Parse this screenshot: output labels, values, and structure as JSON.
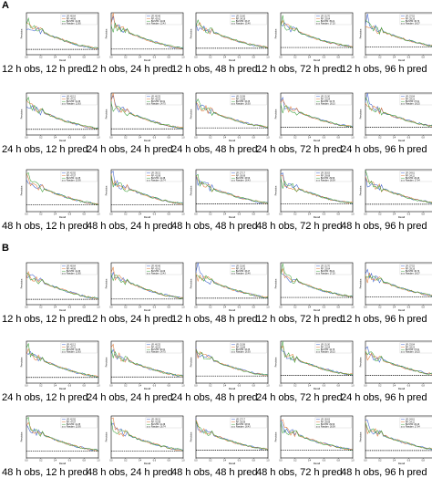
{
  "axis_labels": {
    "ylabel": "Precision",
    "xlabel": "Recall"
  },
  "x_ticks": [
    "0.0",
    "0.2",
    "0.4",
    "0.6",
    "0.8",
    "1.0"
  ],
  "series_colors": {
    "LR": "#3a5fcd",
    "RF": "#e07b39",
    "BiLSTM": "#3aa03a",
    "Random": "#000000"
  },
  "chart_data": [
    {
      "section": "A",
      "type": "line",
      "xlim": [
        0,
        1
      ],
      "ylim": [
        0,
        1
      ],
      "panels": [
        {
          "caption": "12 h obs, 12 h pred",
          "legend": [
            {
              "name": "LR: 40.64",
              "value": 0.4064
            },
            {
              "name": "RF: 44.96",
              "value": 0.4496
            },
            {
              "name": "BiLSTM: 41.30",
              "value": 0.413
            },
            {
              "name": "Random: 12.85",
              "value": 0.1285
            }
          ]
        },
        {
          "caption": "12 h obs, 24 h pred",
          "legend": [
            {
              "name": "LR: 40.46",
              "value": 0.4046
            },
            {
              "name": "RF: 42.61",
              "value": 0.4261
            },
            {
              "name": "BiLSTM: 41.00",
              "value": 0.41
            },
            {
              "name": "Random: 13.43",
              "value": 0.1343
            }
          ]
        },
        {
          "caption": "12 h obs, 48 h pred",
          "legend": [
            {
              "name": "LR: 31.60",
              "value": 0.316
            },
            {
              "name": "RF: 34.19",
              "value": 0.3419
            },
            {
              "name": "BiLSTM: 33.47",
              "value": 0.3347
            },
            {
              "name": "Random: 15.46",
              "value": 0.1546
            }
          ]
        },
        {
          "caption": "12 h obs, 72 h pred",
          "legend": [
            {
              "name": "LR: 31.70",
              "value": 0.317
            },
            {
              "name": "RF: 33.64",
              "value": 0.3364
            },
            {
              "name": "BiLSTM: 35.21",
              "value": 0.3521
            },
            {
              "name": "Random: 17.25",
              "value": 0.1725
            }
          ]
        },
        {
          "caption": "12 h obs, 96 h pred",
          "legend": [
            {
              "name": "LR: 27.52",
              "value": 0.2752
            },
            {
              "name": "RF: 29.16",
              "value": 0.2916
            },
            {
              "name": "BiLSTM: 30.73",
              "value": 0.3073
            },
            {
              "name": "Random: 18.37",
              "value": 0.1837
            }
          ]
        },
        {
          "caption": "24 h obs, 12 h pred",
          "legend": [
            {
              "name": "LR: 42.12",
              "value": 0.4212
            },
            {
              "name": "RF: 47.21",
              "value": 0.4721
            },
            {
              "name": "BiLSTM: 41.36",
              "value": 0.4136
            },
            {
              "name": "Random: 13.63",
              "value": 0.1363
            }
          ]
        },
        {
          "caption": "24 h obs, 24 h pred",
          "legend": [
            {
              "name": "LR: 40.25",
              "value": 0.4025
            },
            {
              "name": "RF: 42.02",
              "value": 0.4202
            },
            {
              "name": "BiLSTM: 40.61",
              "value": 0.4061
            },
            {
              "name": "Random: 14.75",
              "value": 0.1475
            }
          ]
        },
        {
          "caption": "24 h obs, 48 h pred",
          "legend": [
            {
              "name": "LR: 31.58",
              "value": 0.3158
            },
            {
              "name": "RF: 31.86",
              "value": 0.3186
            },
            {
              "name": "BiLSTM: 33.35",
              "value": 0.3335
            },
            {
              "name": "Random: 16.93",
              "value": 0.1693
            }
          ]
        },
        {
          "caption": "24 h obs, 72 h pred",
          "legend": [
            {
              "name": "LR: 31.30",
              "value": 0.313
            },
            {
              "name": "RF: 31.54",
              "value": 0.3154
            },
            {
              "name": "BiLSTM: 34.75",
              "value": 0.3475
            },
            {
              "name": "Random: 18.15",
              "value": 0.1815
            }
          ]
        },
        {
          "caption": "24 h obs, 96 h pred",
          "legend": [
            {
              "name": "LR: 23.04",
              "value": 0.2304
            },
            {
              "name": "RF: 24.22",
              "value": 0.2422
            },
            {
              "name": "BiLSTM: 27.61",
              "value": 0.2761
            },
            {
              "name": "Random: 18.25",
              "value": 0.1825
            }
          ]
        },
        {
          "caption": "48 h obs, 12 h pred",
          "legend": [
            {
              "name": "LR: 42.92",
              "value": 0.4292
            },
            {
              "name": "RF: 47.57",
              "value": 0.4757
            },
            {
              "name": "BiLSTM: 41.35",
              "value": 0.4135
            },
            {
              "name": "Random: 15.95",
              "value": 0.1595
            }
          ]
        },
        {
          "caption": "48 h obs, 24 h pred",
          "legend": [
            {
              "name": "LR: 39.31",
              "value": 0.3931
            },
            {
              "name": "RF: 41.99",
              "value": 0.4199
            },
            {
              "name": "BiLSTM: 41.38",
              "value": 0.4138
            },
            {
              "name": "Random: 16.74",
              "value": 0.1674
            }
          ]
        },
        {
          "caption": "48 h obs, 48 h pred",
          "legend": [
            {
              "name": "LR: 27.17",
              "value": 0.2717
            },
            {
              "name": "RF: 30.69",
              "value": 0.3069
            },
            {
              "name": "BiLSTM: 33.59",
              "value": 0.3359
            },
            {
              "name": "Random: 18.43",
              "value": 0.1843
            }
          ]
        },
        {
          "caption": "48 h obs, 72 h pred",
          "legend": [
            {
              "name": "LR: 30.63",
              "value": 0.3063
            },
            {
              "name": "RF: 29.68",
              "value": 0.2968
            },
            {
              "name": "BiLSTM: 29.56",
              "value": 0.2956
            },
            {
              "name": "Random: 18.09",
              "value": 0.1809
            }
          ]
        },
        {
          "caption": "48 h obs, 96 h pred",
          "legend": [
            {
              "name": "LR: 24.61",
              "value": 0.2461
            },
            {
              "name": "RF: 24.11",
              "value": 0.2411
            },
            {
              "name": "BiLSTM: 26.46",
              "value": 0.2646
            },
            {
              "name": "Random: 17.64",
              "value": 0.1764
            }
          ]
        }
      ]
    },
    {
      "section": "B",
      "type": "line",
      "xlim": [
        0,
        1
      ],
      "ylim": [
        0,
        1
      ],
      "panels": [
        {
          "caption": "12 h obs, 12 h pred",
          "legend": [
            {
              "name": "LR: 40.64",
              "value": 0.4064
            },
            {
              "name": "RF: 44.96",
              "value": 0.4496
            },
            {
              "name": "BiLSTM: 41.30",
              "value": 0.413
            },
            {
              "name": "Random: 12.85",
              "value": 0.1285
            }
          ]
        },
        {
          "caption": "12 h obs, 24 h pred",
          "legend": [
            {
              "name": "LR: 40.46",
              "value": 0.4046
            },
            {
              "name": "RF: 42.61",
              "value": 0.4261
            },
            {
              "name": "BiLSTM: 41.00",
              "value": 0.41
            },
            {
              "name": "Random: 13.43",
              "value": 0.1343
            }
          ]
        },
        {
          "caption": "12 h obs, 48 h pred",
          "legend": [
            {
              "name": "LR: 31.60",
              "value": 0.316
            },
            {
              "name": "RF: 34.19",
              "value": 0.3419
            },
            {
              "name": "BiLSTM: 33.47",
              "value": 0.3347
            },
            {
              "name": "Random: 15.46",
              "value": 0.1546
            }
          ]
        },
        {
          "caption": "12 h obs, 72 h pred",
          "legend": [
            {
              "name": "LR: 31.70",
              "value": 0.317
            },
            {
              "name": "RF: 33.64",
              "value": 0.3364
            },
            {
              "name": "BiLSTM: 35.21",
              "value": 0.3521
            },
            {
              "name": "Random: 17.25",
              "value": 0.1725
            }
          ]
        },
        {
          "caption": "12 h obs, 96 h pred",
          "legend": [
            {
              "name": "LR: 27.52",
              "value": 0.2752
            },
            {
              "name": "RF: 29.16",
              "value": 0.2916
            },
            {
              "name": "BiLSTM: 30.73",
              "value": 0.3073
            },
            {
              "name": "Random: 18.37",
              "value": 0.1837
            }
          ]
        },
        {
          "caption": "24 h obs, 12 h pred",
          "legend": [
            {
              "name": "LR: 42.12",
              "value": 0.4212
            },
            {
              "name": "RF: 47.21",
              "value": 0.4721
            },
            {
              "name": "BiLSTM: 41.36",
              "value": 0.4136
            },
            {
              "name": "Random: 13.63",
              "value": 0.1363
            }
          ]
        },
        {
          "caption": "24 h obs, 24 h pred",
          "legend": [
            {
              "name": "LR: 40.25",
              "value": 0.4025
            },
            {
              "name": "RF: 42.02",
              "value": 0.4202
            },
            {
              "name": "BiLSTM: 40.61",
              "value": 0.4061
            },
            {
              "name": "Random: 14.75",
              "value": 0.1475
            }
          ]
        },
        {
          "caption": "24 h obs, 48 h pred",
          "legend": [
            {
              "name": "LR: 31.58",
              "value": 0.3158
            },
            {
              "name": "RF: 31.86",
              "value": 0.3186
            },
            {
              "name": "BiLSTM: 33.35",
              "value": 0.3335
            },
            {
              "name": "Random: 16.93",
              "value": 0.1693
            }
          ]
        },
        {
          "caption": "24 h obs, 72 h pred",
          "legend": [
            {
              "name": "LR: 31.30",
              "value": 0.313
            },
            {
              "name": "RF: 31.54",
              "value": 0.3154
            },
            {
              "name": "BiLSTM: 34.75",
              "value": 0.3475
            },
            {
              "name": "Random: 18.15",
              "value": 0.1815
            }
          ]
        },
        {
          "caption": "24 h obs, 96 h pred",
          "legend": [
            {
              "name": "LR: 23.04",
              "value": 0.2304
            },
            {
              "name": "RF: 24.22",
              "value": 0.2422
            },
            {
              "name": "BiLSTM: 27.61",
              "value": 0.2761
            },
            {
              "name": "Random: 18.25",
              "value": 0.1825
            }
          ]
        },
        {
          "caption": "48 h obs, 12 h pred",
          "legend": [
            {
              "name": "LR: 42.92",
              "value": 0.4292
            },
            {
              "name": "RF: 47.57",
              "value": 0.4757
            },
            {
              "name": "BiLSTM: 41.35",
              "value": 0.4135
            },
            {
              "name": "Random: 15.95",
              "value": 0.1595
            }
          ]
        },
        {
          "caption": "48 h obs, 24 h pred",
          "legend": [
            {
              "name": "LR: 39.31",
              "value": 0.3931
            },
            {
              "name": "RF: 41.99",
              "value": 0.4199
            },
            {
              "name": "BiLSTM: 41.38",
              "value": 0.4138
            },
            {
              "name": "Random: 16.74",
              "value": 0.1674
            }
          ]
        },
        {
          "caption": "48 h obs, 48 h pred",
          "legend": [
            {
              "name": "LR: 27.17",
              "value": 0.2717
            },
            {
              "name": "RF: 30.69",
              "value": 0.3069
            },
            {
              "name": "BiLSTM: 33.59",
              "value": 0.3359
            },
            {
              "name": "Random: 18.43",
              "value": 0.1843
            }
          ]
        },
        {
          "caption": "48 h obs, 72 h pred",
          "legend": [
            {
              "name": "LR: 30.63",
              "value": 0.3063
            },
            {
              "name": "RF: 29.68",
              "value": 0.2968
            },
            {
              "name": "BiLSTM: 29.56",
              "value": 0.2956
            },
            {
              "name": "Random: 18.09",
              "value": 0.1809
            }
          ]
        },
        {
          "caption": "48 h obs, 96 h pred",
          "legend": [
            {
              "name": "LR: 24.61",
              "value": 0.2461
            },
            {
              "name": "RF: 24.11",
              "value": 0.2411
            },
            {
              "name": "BiLSTM: 26.46",
              "value": 0.2646
            },
            {
              "name": "Random: 17.64",
              "value": 0.1764
            }
          ]
        }
      ]
    }
  ]
}
